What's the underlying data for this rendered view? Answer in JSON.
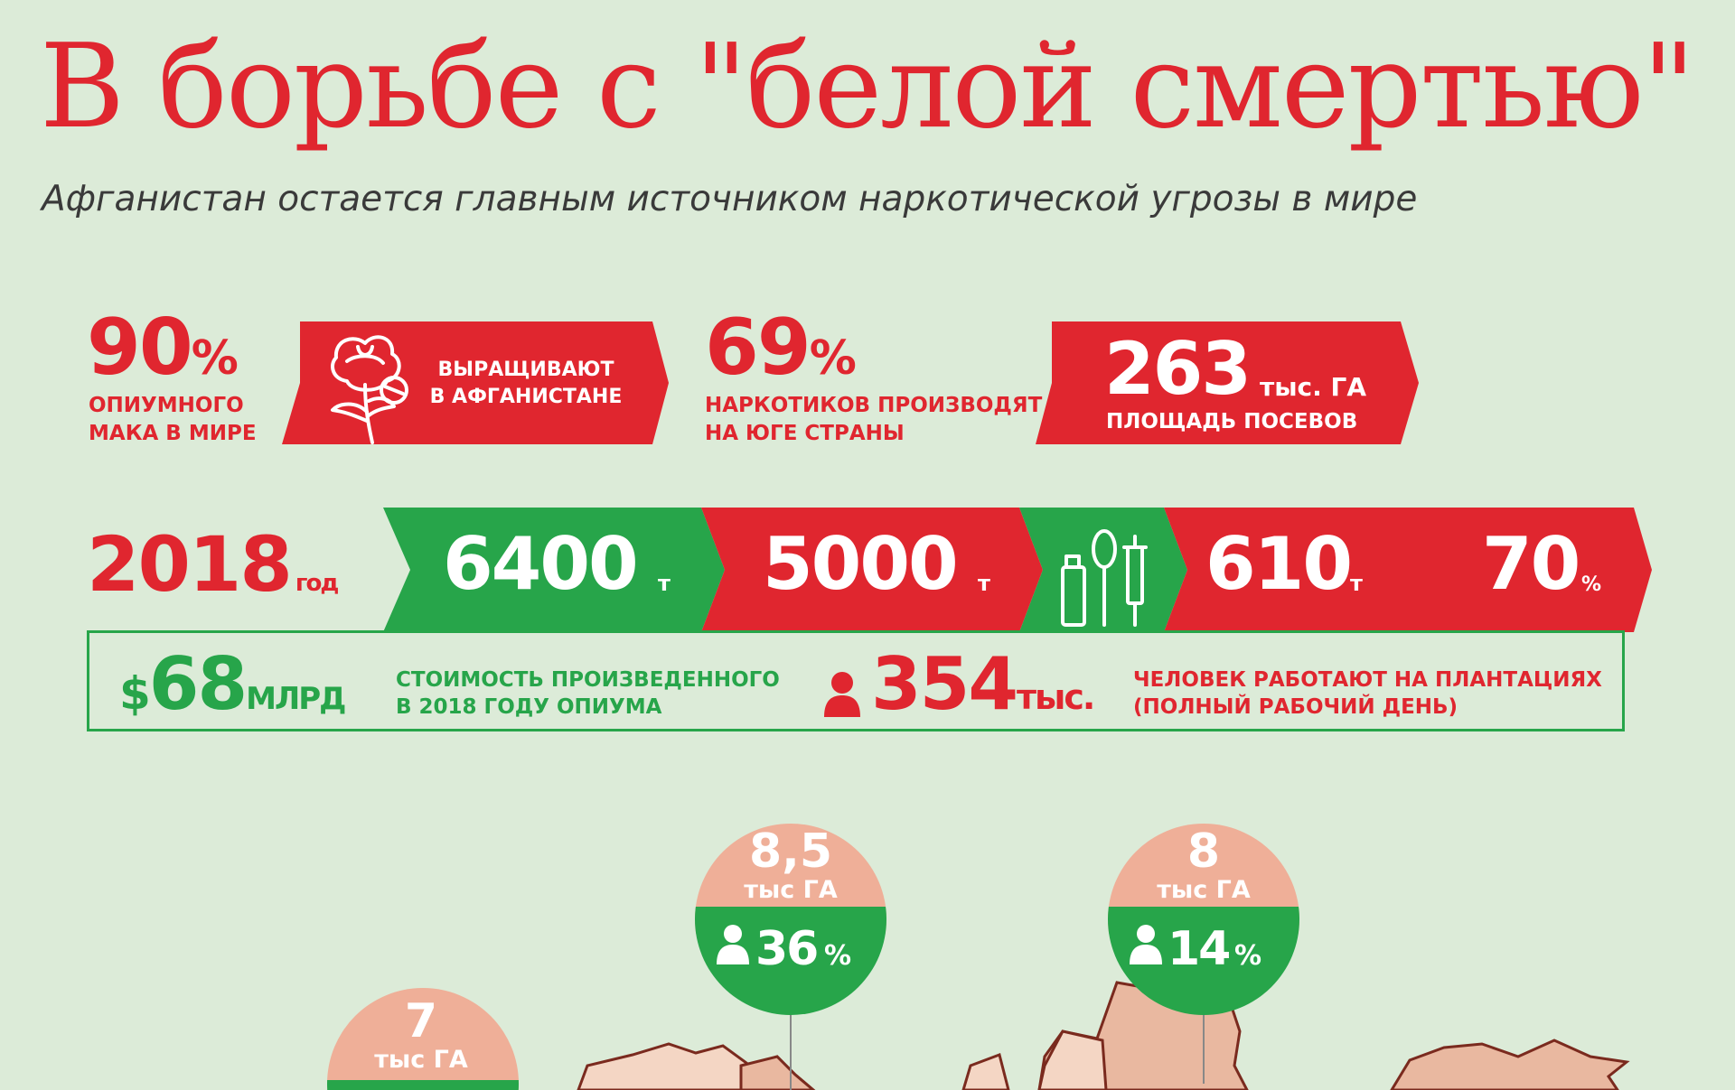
{
  "header": {
    "title": "В борьбе с \"белой смертью\"",
    "subtitle": "Афганистан остается главным источником наркотической угрозы в мире"
  },
  "stats_row1": {
    "stat1": {
      "value": "90",
      "unit": "%",
      "caption_line1": "ОПИУМНОГО",
      "caption_line2": "МАКА В МИРЕ"
    },
    "banner1": {
      "line1": "ВЫРАЩИВАЮТ",
      "line2": "В АФГАНИСТАНЕ",
      "icon": "poppy-flower-icon"
    },
    "stat2": {
      "value": "69",
      "unit": "%",
      "caption_line1": "НАРКОТИКОВ ПРОИЗВОДЯТ",
      "caption_line2": "НА ЮГЕ СТРАНЫ"
    },
    "banner2": {
      "value": "263",
      "unit": "тыс. ГА",
      "caption": "ПЛОЩАДЬ ПОСЕВОВ"
    }
  },
  "stats_row2": {
    "year": "2018",
    "year_unit": "год",
    "seg1": {
      "value": "6400",
      "unit": "т"
    },
    "seg2": {
      "value": "5000",
      "unit": "т"
    },
    "icons": "lighter-spoon-syringe-icon",
    "seg3": {
      "value": "610",
      "unit": "т"
    },
    "seg4": {
      "value": "70",
      "unit": "%"
    }
  },
  "info_box": {
    "cost_currency": "$",
    "cost_value": "68",
    "cost_unit": "МЛРД",
    "cost_caption_line1": "СТОИМОСТЬ ПРОИЗВЕДЕННОГО",
    "cost_caption_line2": "В 2018 ГОДУ ОПИУМА",
    "workers_value": "354",
    "workers_unit": "тыс.",
    "workers_caption_line1": "ЧЕЛОВЕК РАБОТАЮТ НА ПЛАНТАЦИЯХ",
    "workers_caption_line2": "(ПОЛНЫЙ РАБОЧИЙ ДЕНЬ)"
  },
  "regions": [
    {
      "area": "8,5",
      "area_unit": "тыс ГА",
      "share": "36",
      "share_unit": "%"
    },
    {
      "area": "8",
      "area_unit": "тыс ГА",
      "share": "14",
      "share_unit": "%"
    },
    {
      "area": "7",
      "area_unit": "тыс ГА"
    }
  ],
  "colors": {
    "red": "#e0262f",
    "green": "#27a54a",
    "salmon": "#efaf98",
    "background": "#dcebd8",
    "map_fill": "#e9b8a0"
  }
}
